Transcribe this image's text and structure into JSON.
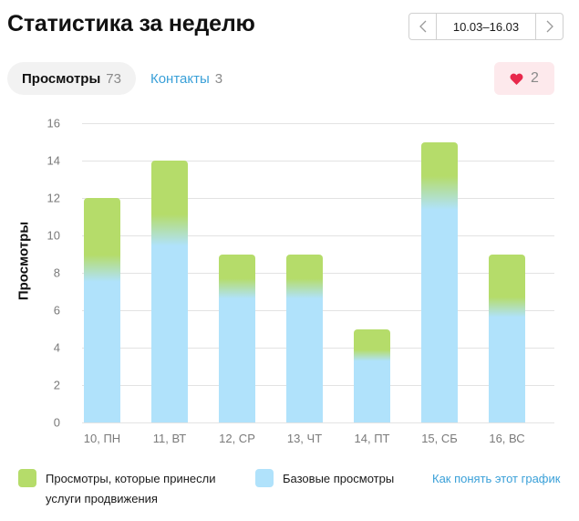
{
  "header": {
    "title": "Статистика за неделю",
    "date_range": "10.03–16.03",
    "prev_icon": "chevron-left-icon",
    "next_icon": "chevron-right-icon"
  },
  "tabs": [
    {
      "label": "Просмотры",
      "count": "73",
      "active": true
    },
    {
      "label": "Контакты",
      "count": "3",
      "active": false
    }
  ],
  "likes": {
    "icon": "heart-icon",
    "count": "2"
  },
  "colors": {
    "promoted": "#b5dc6a",
    "base": "#b0e2fb",
    "link": "#3aa0d8",
    "heart": "#e8284b",
    "likes_bg": "#fde9ec"
  },
  "chart_data": {
    "type": "bar",
    "stacked": true,
    "title": "Статистика за неделю",
    "xlabel": "",
    "ylabel": "Просмотры",
    "ylim": [
      0,
      16
    ],
    "yticks": [
      0,
      2,
      4,
      6,
      8,
      10,
      12,
      14,
      16
    ],
    "grid": true,
    "legend_position": "bottom",
    "categories": [
      "10, ПН",
      "11, ВТ",
      "12, СР",
      "13, ЧТ",
      "14, ПТ",
      "15, СБ",
      "16, ВС"
    ],
    "totals": [
      12,
      14,
      9,
      9,
      5,
      15,
      9
    ],
    "series": [
      {
        "name": "Базовые просмотры",
        "color": "#b0e2fb",
        "values": [
          8,
          10,
          7,
          7,
          3.5,
          12,
          6
        ]
      },
      {
        "name": "Просмотры, которые принесли услуги продвижения",
        "color": "#b5dc6a",
        "values": [
          4,
          4,
          2,
          2,
          1.5,
          3,
          3
        ]
      }
    ]
  },
  "legend": {
    "promoted_label": "Просмотры, которые принесли услуги продвижения",
    "base_label": "Базовые просмотры",
    "help_link": "Как понять этот график"
  }
}
